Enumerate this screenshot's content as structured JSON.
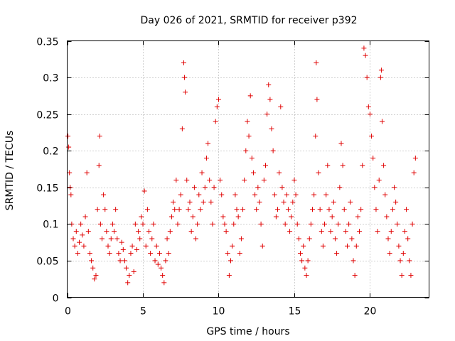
{
  "chart_data": {
    "type": "scatter",
    "title": "Day 026 of 2021, SRMTID for receiver p392",
    "xlabel": "GPS time / hours",
    "ylabel": "SRMTID / TECUs",
    "xlim": [
      0,
      23.9
    ],
    "ylim": [
      0,
      0.35
    ],
    "x_ticks": [
      0,
      5,
      10,
      15,
      20
    ],
    "y_ticks": [
      0,
      0.05,
      0.1,
      0.15,
      0.2,
      0.25,
      0.3,
      0.35
    ],
    "x_tick_labels": [
      "0",
      "5",
      "10",
      "15",
      "20"
    ],
    "y_tick_labels": [
      "0",
      "0.05",
      "0.1",
      "0.15",
      "0.2",
      "0.25",
      "0.3",
      "0.35"
    ],
    "grid": true,
    "marker": "+",
    "color": "#e00000",
    "series": [
      {
        "name": "SRMTID",
        "points": [
          [
            0.05,
            0.22
          ],
          [
            0.1,
            0.205
          ],
          [
            0.15,
            0.17
          ],
          [
            0.2,
            0.15
          ],
          [
            0.25,
            0.14
          ],
          [
            0.3,
            0.1
          ],
          [
            0.4,
            0.08
          ],
          [
            0.5,
            0.07
          ],
          [
            0.6,
            0.09
          ],
          [
            0.7,
            0.06
          ],
          [
            0.8,
            0.075
          ],
          [
            0.9,
            0.1
          ],
          [
            1.0,
            0.085
          ],
          [
            1.1,
            0.07
          ],
          [
            1.2,
            0.11
          ],
          [
            1.3,
            0.17
          ],
          [
            1.4,
            0.09
          ],
          [
            1.5,
            0.06
          ],
          [
            1.6,
            0.05
          ],
          [
            1.7,
            0.04
          ],
          [
            1.8,
            0.025
          ],
          [
            1.9,
            0.03
          ],
          [
            2.0,
            0.12
          ],
          [
            2.1,
            0.18
          ],
          [
            2.15,
            0.22
          ],
          [
            2.2,
            0.1
          ],
          [
            2.3,
            0.08
          ],
          [
            2.4,
            0.14
          ],
          [
            2.5,
            0.12
          ],
          [
            2.6,
            0.09
          ],
          [
            2.7,
            0.07
          ],
          [
            2.8,
            0.06
          ],
          [
            2.9,
            0.08
          ],
          [
            3.0,
            0.1
          ],
          [
            3.1,
            0.09
          ],
          [
            3.2,
            0.12
          ],
          [
            3.3,
            0.08
          ],
          [
            3.4,
            0.06
          ],
          [
            3.5,
            0.05
          ],
          [
            3.6,
            0.075
          ],
          [
            3.7,
            0.065
          ],
          [
            3.8,
            0.05
          ],
          [
            3.9,
            0.04
          ],
          [
            4.0,
            0.02
          ],
          [
            4.1,
            0.03
          ],
          [
            4.2,
            0.06
          ],
          [
            4.3,
            0.07
          ],
          [
            4.4,
            0.035
          ],
          [
            4.5,
            0.1
          ],
          [
            4.6,
            0.065
          ],
          [
            4.7,
            0.09
          ],
          [
            4.8,
            0.08
          ],
          [
            4.9,
            0.11
          ],
          [
            5.0,
            0.1
          ],
          [
            5.1,
            0.145
          ],
          [
            5.2,
            0.07
          ],
          [
            5.3,
            0.12
          ],
          [
            5.4,
            0.09
          ],
          [
            5.5,
            0.06
          ],
          [
            5.6,
            0.08
          ],
          [
            5.7,
            0.1
          ],
          [
            5.8,
            0.05
          ],
          [
            5.9,
            0.07
          ],
          [
            6.0,
            0.045
          ],
          [
            6.1,
            0.06
          ],
          [
            6.2,
            0.04
          ],
          [
            6.3,
            0.03
          ],
          [
            6.4,
            0.02
          ],
          [
            6.5,
            0.05
          ],
          [
            6.6,
            0.08
          ],
          [
            6.7,
            0.06
          ],
          [
            6.8,
            0.09
          ],
          [
            6.9,
            0.11
          ],
          [
            7.0,
            0.13
          ],
          [
            7.1,
            0.12
          ],
          [
            7.2,
            0.16
          ],
          [
            7.3,
            0.1
          ],
          [
            7.4,
            0.12
          ],
          [
            7.5,
            0.14
          ],
          [
            7.6,
            0.23
          ],
          [
            7.7,
            0.32
          ],
          [
            7.75,
            0.3
          ],
          [
            7.8,
            0.28
          ],
          [
            7.9,
            0.16
          ],
          [
            8.0,
            0.12
          ],
          [
            8.1,
            0.13
          ],
          [
            8.2,
            0.09
          ],
          [
            8.3,
            0.11
          ],
          [
            8.4,
            0.15
          ],
          [
            8.5,
            0.08
          ],
          [
            8.6,
            0.1
          ],
          [
            8.7,
            0.14
          ],
          [
            8.8,
            0.12
          ],
          [
            8.9,
            0.17
          ],
          [
            9.0,
            0.13
          ],
          [
            9.1,
            0.15
          ],
          [
            9.2,
            0.19
          ],
          [
            9.3,
            0.21
          ],
          [
            9.4,
            0.16
          ],
          [
            9.5,
            0.13
          ],
          [
            9.6,
            0.1
          ],
          [
            9.7,
            0.15
          ],
          [
            9.8,
            0.24
          ],
          [
            9.9,
            0.26
          ],
          [
            10.0,
            0.27
          ],
          [
            10.1,
            0.16
          ],
          [
            10.2,
            0.14
          ],
          [
            10.3,
            0.11
          ],
          [
            10.4,
            0.1
          ],
          [
            10.5,
            0.09
          ],
          [
            10.6,
            0.06
          ],
          [
            10.7,
            0.03
          ],
          [
            10.8,
            0.05
          ],
          [
            10.9,
            0.07
          ],
          [
            11.0,
            0.1
          ],
          [
            11.1,
            0.14
          ],
          [
            11.2,
            0.12
          ],
          [
            11.3,
            0.11
          ],
          [
            11.4,
            0.06
          ],
          [
            11.5,
            0.08
          ],
          [
            11.6,
            0.12
          ],
          [
            11.7,
            0.16
          ],
          [
            11.8,
            0.2
          ],
          [
            11.9,
            0.24
          ],
          [
            12.0,
            0.22
          ],
          [
            12.1,
            0.275
          ],
          [
            12.2,
            0.19
          ],
          [
            12.3,
            0.17
          ],
          [
            12.4,
            0.14
          ],
          [
            12.5,
            0.12
          ],
          [
            12.6,
            0.15
          ],
          [
            12.7,
            0.13
          ],
          [
            12.8,
            0.1
          ],
          [
            12.9,
            0.07
          ],
          [
            13.0,
            0.16
          ],
          [
            13.1,
            0.18
          ],
          [
            13.2,
            0.25
          ],
          [
            13.3,
            0.29
          ],
          [
            13.4,
            0.27
          ],
          [
            13.5,
            0.23
          ],
          [
            13.6,
            0.2
          ],
          [
            13.7,
            0.14
          ],
          [
            13.8,
            0.11
          ],
          [
            13.9,
            0.12
          ],
          [
            14.0,
            0.17
          ],
          [
            14.1,
            0.26
          ],
          [
            14.2,
            0.15
          ],
          [
            14.3,
            0.13
          ],
          [
            14.4,
            0.1
          ],
          [
            14.5,
            0.14
          ],
          [
            14.6,
            0.12
          ],
          [
            14.7,
            0.09
          ],
          [
            14.8,
            0.11
          ],
          [
            14.9,
            0.13
          ],
          [
            15.0,
            0.16
          ],
          [
            15.1,
            0.14
          ],
          [
            15.2,
            0.1
          ],
          [
            15.3,
            0.08
          ],
          [
            15.4,
            0.06
          ],
          [
            15.5,
            0.05
          ],
          [
            15.6,
            0.07
          ],
          [
            15.7,
            0.04
          ],
          [
            15.8,
            0.03
          ],
          [
            15.9,
            0.05
          ],
          [
            16.0,
            0.08
          ],
          [
            16.1,
            0.1
          ],
          [
            16.2,
            0.12
          ],
          [
            16.3,
            0.14
          ],
          [
            16.4,
            0.22
          ],
          [
            16.45,
            0.32
          ],
          [
            16.5,
            0.27
          ],
          [
            16.6,
            0.17
          ],
          [
            16.7,
            0.12
          ],
          [
            16.8,
            0.09
          ],
          [
            16.9,
            0.07
          ],
          [
            17.0,
            0.1
          ],
          [
            17.1,
            0.14
          ],
          [
            17.2,
            0.18
          ],
          [
            17.3,
            0.12
          ],
          [
            17.4,
            0.09
          ],
          [
            17.5,
            0.11
          ],
          [
            17.6,
            0.13
          ],
          [
            17.7,
            0.08
          ],
          [
            17.8,
            0.06
          ],
          [
            17.9,
            0.1
          ],
          [
            18.0,
            0.15
          ],
          [
            18.1,
            0.21
          ],
          [
            18.2,
            0.18
          ],
          [
            18.3,
            0.12
          ],
          [
            18.4,
            0.09
          ],
          [
            18.5,
            0.07
          ],
          [
            18.6,
            0.1
          ],
          [
            18.7,
            0.13
          ],
          [
            18.8,
            0.08
          ],
          [
            18.9,
            0.05
          ],
          [
            19.0,
            0.03
          ],
          [
            19.1,
            0.07
          ],
          [
            19.2,
            0.11
          ],
          [
            19.3,
            0.09
          ],
          [
            19.4,
            0.12
          ],
          [
            19.5,
            0.18
          ],
          [
            19.6,
            0.34
          ],
          [
            19.7,
            0.33
          ],
          [
            19.8,
            0.3
          ],
          [
            19.9,
            0.26
          ],
          [
            20.0,
            0.25
          ],
          [
            20.1,
            0.22
          ],
          [
            20.2,
            0.19
          ],
          [
            20.3,
            0.15
          ],
          [
            20.4,
            0.12
          ],
          [
            20.5,
            0.09
          ],
          [
            20.6,
            0.16
          ],
          [
            20.7,
            0.3
          ],
          [
            20.75,
            0.31
          ],
          [
            20.8,
            0.24
          ],
          [
            20.9,
            0.18
          ],
          [
            21.0,
            0.14
          ],
          [
            21.1,
            0.11
          ],
          [
            21.2,
            0.08
          ],
          [
            21.3,
            0.06
          ],
          [
            21.4,
            0.09
          ],
          [
            21.5,
            0.12
          ],
          [
            21.6,
            0.15
          ],
          [
            21.7,
            0.13
          ],
          [
            21.8,
            0.1
          ],
          [
            21.9,
            0.07
          ],
          [
            22.0,
            0.05
          ],
          [
            22.1,
            0.03
          ],
          [
            22.2,
            0.06
          ],
          [
            22.3,
            0.09
          ],
          [
            22.4,
            0.12
          ],
          [
            22.5,
            0.08
          ],
          [
            22.6,
            0.05
          ],
          [
            22.7,
            0.03
          ],
          [
            22.8,
            0.1
          ],
          [
            22.9,
            0.17
          ],
          [
            23.0,
            0.19
          ]
        ]
      }
    ]
  }
}
